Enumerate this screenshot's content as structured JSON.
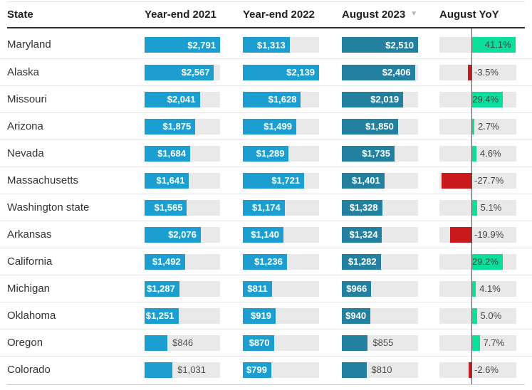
{
  "table": {
    "columns": [
      "State",
      "Year-end 2021",
      "Year-end 2022",
      "August 2023",
      "August YoY"
    ],
    "sort_indicator": "▼",
    "sorted_column": "August 2023",
    "sort_direction": "descending"
  },
  "colors": {
    "bar_blue": "#1C9FD0",
    "bar_teal": "#23809E",
    "positive_green": "#0CDE9B",
    "negative_red": "#C9191D",
    "bar_track": "#E9E9E9",
    "header_text": "#1F1F1F",
    "zero_line": "#4D4D4D"
  },
  "chart_data": {
    "type": "bar",
    "layout": "table-with-inline-bars",
    "value_unit": "$",
    "categories": [
      "Maryland",
      "Alaska",
      "Missouri",
      "Arizona",
      "Nevada",
      "Massachusetts",
      "Washington state",
      "Arkansas",
      "California",
      "Michigan",
      "Oklahoma",
      "Oregon",
      "Colorado"
    ],
    "series": [
      {
        "name": "Year-end 2021",
        "values": [
          2791,
          2567,
          2041,
          1875,
          1684,
          1641,
          1565,
          2076,
          1492,
          1287,
          1251,
          846,
          1031
        ]
      },
      {
        "name": "Year-end 2022",
        "values": [
          1313,
          2139,
          1628,
          1499,
          1289,
          1721,
          1174,
          1140,
          1236,
          811,
          919,
          870,
          799
        ]
      },
      {
        "name": "August 2023",
        "values": [
          2510,
          2406,
          2019,
          1850,
          1735,
          1401,
          1328,
          1324,
          1282,
          966,
          940,
          855,
          810
        ]
      },
      {
        "name": "August YoY",
        "values": [
          41.1,
          -3.5,
          29.4,
          2.7,
          4.6,
          -27.7,
          5.1,
          -19.9,
          29.2,
          4.1,
          5.0,
          7.7,
          -2.6
        ],
        "unit": "%"
      }
    ],
    "axis_scaling": {
      "year_end_2021_max": 2791,
      "year_end_2022_max": 2139,
      "august_2023_max": 2510,
      "yoy_axis": {
        "min": -30,
        "max": 42,
        "zero_line": true
      }
    },
    "grid": false,
    "legend": "none"
  }
}
